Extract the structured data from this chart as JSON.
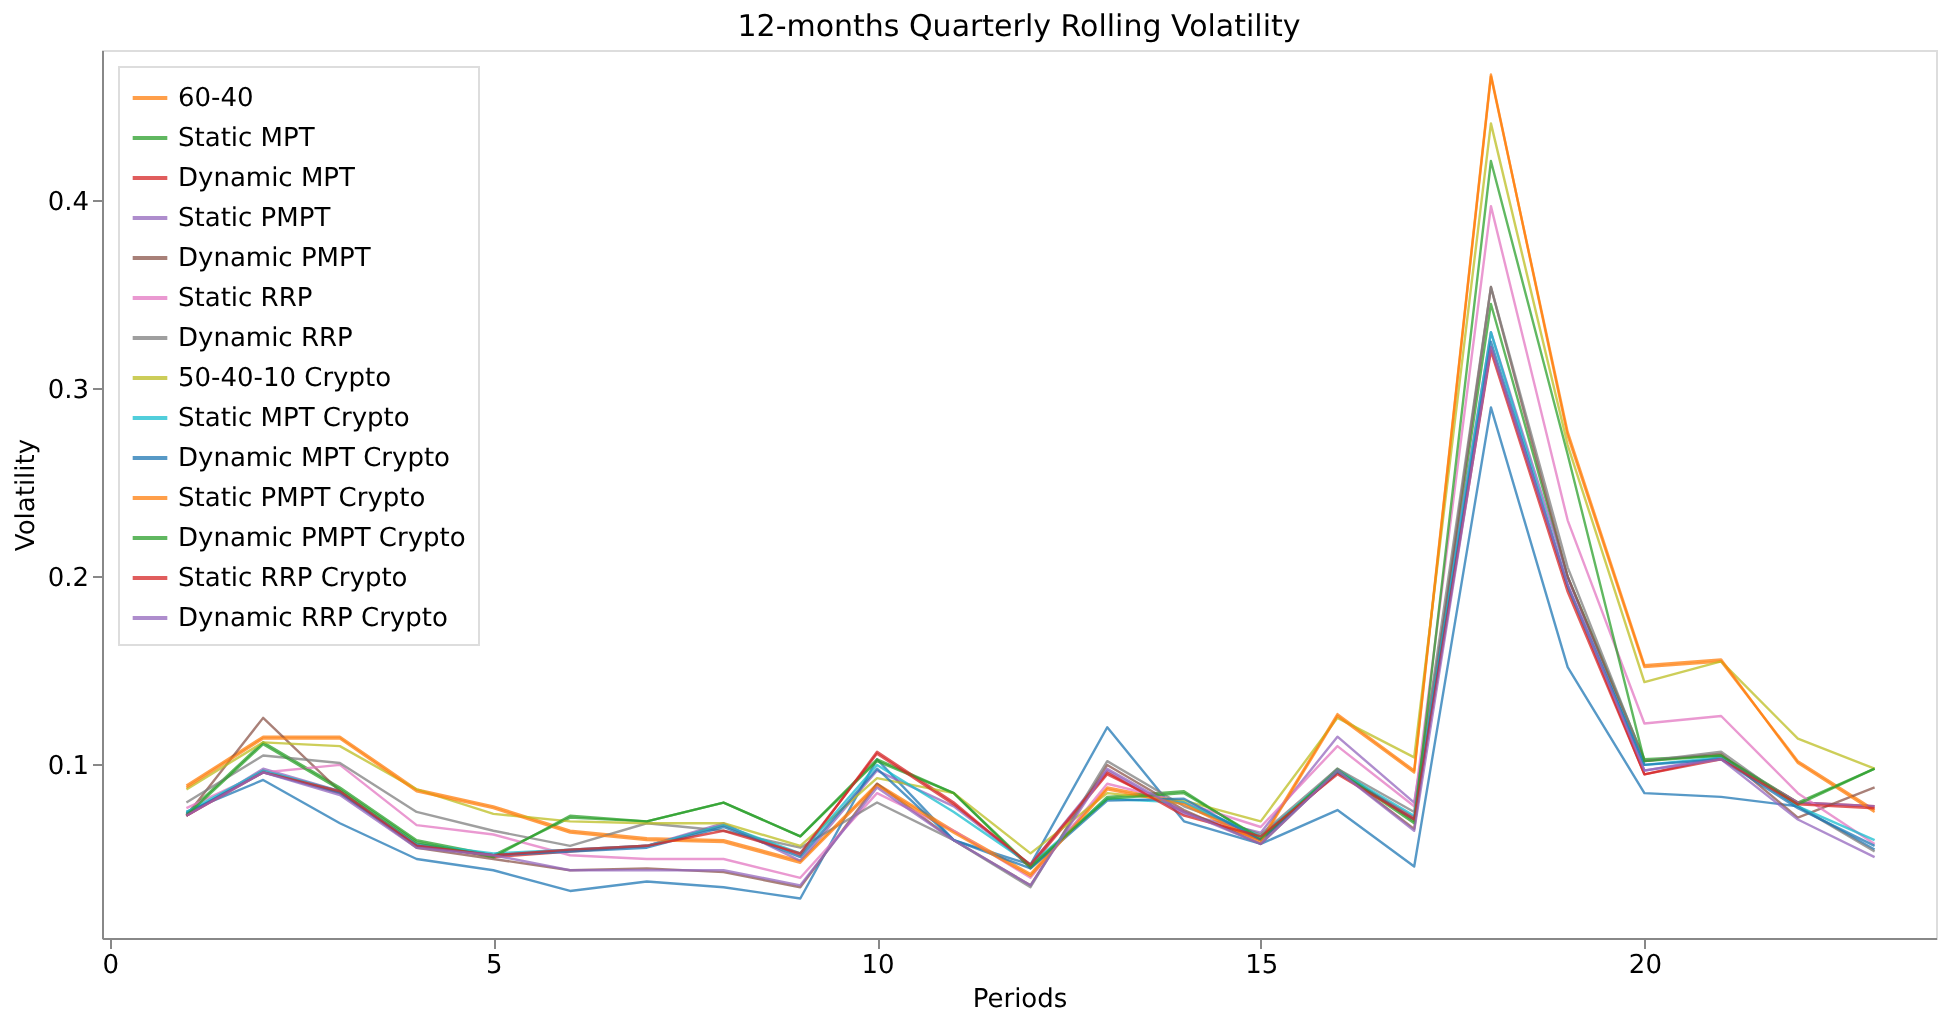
{
  "chart_data": {
    "type": "line",
    "title": "12-months Quarterly Rolling Volatility",
    "xlabel": "Periods",
    "ylabel": "Volatility",
    "x": [
      1,
      2,
      3,
      4,
      5,
      6,
      7,
      8,
      9,
      10,
      11,
      12,
      13,
      14,
      15,
      16,
      17,
      18,
      19,
      20,
      21,
      22,
      23
    ],
    "xlim": [
      -0.1,
      23.8
    ],
    "xticks": [
      0,
      5,
      10,
      15,
      20
    ],
    "ylim": [
      0.008,
      0.48
    ],
    "yticks": [
      0.1,
      0.2,
      0.3,
      0.4
    ],
    "grid": false,
    "legend": "top left",
    "line_style": "solid",
    "marker": "none",
    "series": [
      {
        "color": "#1f77b4",
        "values": [
          0.075,
          0.092,
          0.069,
          0.05,
          0.044,
          0.033,
          0.038,
          0.035,
          0.029,
          0.103,
          0.06,
          0.047,
          0.12,
          0.07,
          0.058,
          0.076,
          0.046,
          0.29,
          0.152,
          0.085,
          0.083,
          0.078,
          0.055
        ]
      },
      {
        "name": "60-40",
        "color": "#ff7f0e",
        "values": [
          0.089,
          0.115,
          0.115,
          0.087,
          0.078,
          0.065,
          0.061,
          0.06,
          0.049,
          0.09,
          0.065,
          0.042,
          0.088,
          0.08,
          0.06,
          0.127,
          0.097,
          0.467,
          0.275,
          0.152,
          0.155,
          0.102,
          0.076
        ]
      },
      {
        "name": "Static MPT",
        "color": "#2ca02c",
        "values": [
          0.074,
          0.112,
          0.088,
          0.06,
          0.052,
          0.072,
          0.07,
          0.08,
          0.062,
          0.103,
          0.085,
          0.045,
          0.083,
          0.086,
          0.06,
          0.098,
          0.07,
          0.345,
          0.2,
          0.103,
          0.105,
          0.08,
          0.098
        ]
      },
      {
        "name": "Dynamic MPT",
        "color": "#d62728",
        "values": [
          0.073,
          0.097,
          0.085,
          0.058,
          0.051,
          0.054,
          0.057,
          0.068,
          0.052,
          0.107,
          0.08,
          0.046,
          0.095,
          0.075,
          0.06,
          0.096,
          0.072,
          0.322,
          0.195,
          0.095,
          0.104,
          0.08,
          0.078
        ]
      },
      {
        "name": "Static PMPT",
        "color": "#9467bd",
        "values": [
          0.073,
          0.098,
          0.086,
          0.057,
          0.052,
          0.055,
          0.057,
          0.069,
          0.049,
          0.097,
          0.078,
          0.047,
          0.097,
          0.074,
          0.064,
          0.115,
          0.08,
          0.33,
          0.2,
          0.097,
          0.104,
          0.08,
          0.078
        ]
      },
      {
        "name": "Dynamic PMPT",
        "color": "#8c564b",
        "values": [
          0.073,
          0.125,
          0.086,
          0.056,
          0.05,
          0.044,
          0.045,
          0.043,
          0.035,
          0.09,
          0.06,
          0.036,
          0.1,
          0.076,
          0.058,
          0.097,
          0.066,
          0.354,
          0.2,
          0.102,
          0.106,
          0.072,
          0.088
        ]
      },
      {
        "name": "Static RRP",
        "color": "#e377c2",
        "values": [
          0.077,
          0.096,
          0.1,
          0.068,
          0.063,
          0.052,
          0.05,
          0.05,
          0.04,
          0.085,
          0.065,
          0.04,
          0.09,
          0.08,
          0.067,
          0.11,
          0.078,
          0.397,
          0.23,
          0.122,
          0.126,
          0.085,
          0.058
        ]
      },
      {
        "name": "Dynamic RRP",
        "color": "#7f7f7f",
        "values": [
          0.08,
          0.105,
          0.101,
          0.075,
          0.065,
          0.057,
          0.069,
          0.065,
          0.056,
          0.08,
          0.06,
          0.035,
          0.102,
          0.078,
          0.063,
          0.098,
          0.075,
          0.354,
          0.205,
          0.102,
          0.107,
          0.078,
          0.054
        ]
      },
      {
        "name": "50-40-10 Crypto",
        "color": "#bcbd22",
        "values": [
          0.087,
          0.112,
          0.11,
          0.087,
          0.074,
          0.07,
          0.069,
          0.069,
          0.057,
          0.093,
          0.085,
          0.053,
          0.085,
          0.081,
          0.07,
          0.125,
          0.104,
          0.441,
          0.27,
          0.144,
          0.155,
          0.114,
          0.098
        ]
      },
      {
        "name": "Static MPT Crypto",
        "color": "#17becf",
        "values": [
          0.075,
          0.097,
          0.086,
          0.058,
          0.053,
          0.055,
          0.057,
          0.068,
          0.053,
          0.1,
          0.075,
          0.047,
          0.082,
          0.08,
          0.062,
          0.097,
          0.073,
          0.33,
          0.195,
          0.1,
          0.104,
          0.078,
          0.06
        ]
      },
      {
        "name": "Dynamic MPT Crypto",
        "color": "#1f77b4",
        "values": [
          0.074,
          0.096,
          0.085,
          0.057,
          0.052,
          0.054,
          0.056,
          0.067,
          0.051,
          0.098,
          0.06,
          0.045,
          0.081,
          0.082,
          0.06,
          0.096,
          0.071,
          0.325,
          0.195,
          0.1,
          0.103,
          0.077,
          0.057
        ]
      },
      {
        "name": "Static PMPT Crypto",
        "color": "#ff7f0e",
        "values": [
          0.088,
          0.114,
          0.114,
          0.086,
          0.077,
          0.064,
          0.06,
          0.059,
          0.048,
          0.089,
          0.064,
          0.041,
          0.087,
          0.079,
          0.059,
          0.126,
          0.096,
          0.466,
          0.277,
          0.153,
          0.156,
          0.101,
          0.075
        ]
      },
      {
        "name": "Dynamic PMPT Crypto",
        "color": "#2ca02c",
        "values": [
          0.073,
          0.111,
          0.087,
          0.059,
          0.051,
          0.073,
          0.07,
          0.08,
          0.062,
          0.102,
          0.085,
          0.046,
          0.082,
          0.085,
          0.061,
          0.097,
          0.069,
          0.421,
          0.265,
          0.102,
          0.105,
          0.079,
          0.098
        ]
      },
      {
        "name": "Static RRP Crypto",
        "color": "#d62728",
        "values": [
          0.073,
          0.096,
          0.086,
          0.057,
          0.052,
          0.055,
          0.057,
          0.065,
          0.053,
          0.106,
          0.079,
          0.047,
          0.096,
          0.073,
          0.062,
          0.095,
          0.071,
          0.32,
          0.192,
          0.095,
          0.103,
          0.079,
          0.077
        ]
      },
      {
        "name": "Dynamic RRP Crypto",
        "color": "#9467bd",
        "values": [
          0.073,
          0.096,
          0.084,
          0.056,
          0.052,
          0.044,
          0.044,
          0.044,
          0.036,
          0.088,
          0.06,
          0.036,
          0.098,
          0.075,
          0.058,
          0.097,
          0.065,
          0.322,
          0.196,
          0.097,
          0.103,
          0.071,
          0.051
        ]
      }
    ]
  }
}
